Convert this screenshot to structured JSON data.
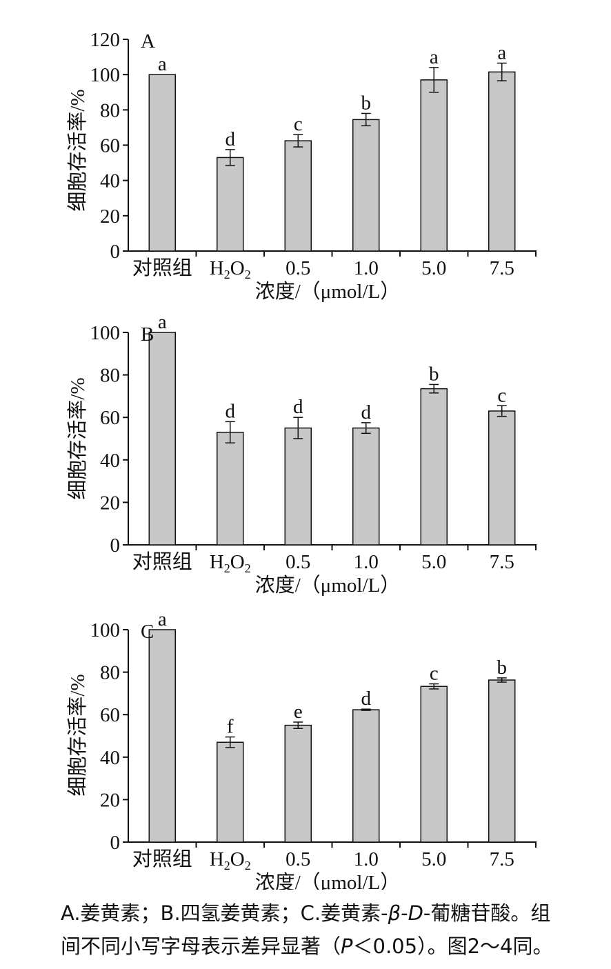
{
  "chart_data": [
    {
      "type": "bar",
      "panel_label": "A",
      "categories": [
        "对照组",
        "H2O2",
        "0.5",
        "1.0",
        "5.0",
        "7.5"
      ],
      "values": [
        100,
        53,
        62.5,
        74.5,
        97,
        101.5
      ],
      "errors": [
        0,
        4.5,
        3.5,
        3.5,
        7,
        5
      ],
      "significance": [
        "a",
        "d",
        "c",
        "b",
        "a",
        "a"
      ],
      "ylabel": "细胞存活率/%",
      "xlabel": "浓度/（μmol/L）",
      "ylim": [
        0,
        120
      ],
      "yticks": [
        0,
        20,
        40,
        60,
        80,
        100,
        120
      ],
      "grid": false,
      "bar_color": "#c8c8c8"
    },
    {
      "type": "bar",
      "panel_label": "B",
      "categories": [
        "对照组",
        "H2O2",
        "0.5",
        "1.0",
        "5.0",
        "7.5"
      ],
      "values": [
        100,
        53,
        55,
        55,
        73.5,
        63
      ],
      "errors": [
        0,
        5,
        5,
        2.5,
        2,
        2.5
      ],
      "significance": [
        "a",
        "d",
        "d",
        "d",
        "b",
        "c"
      ],
      "ylabel": "细胞存活率/%",
      "xlabel": "浓度/（μmol/L）",
      "ylim": [
        0,
        100
      ],
      "yticks": [
        0,
        20,
        40,
        60,
        80,
        100
      ],
      "grid": false,
      "bar_color": "#c8c8c8"
    },
    {
      "type": "bar",
      "panel_label": "C",
      "categories": [
        "对照组",
        "H2O2",
        "0.5",
        "1.0",
        "5.0",
        "7.5"
      ],
      "values": [
        100,
        47,
        55,
        62.3,
        73.3,
        76.3
      ],
      "errors": [
        0,
        2.5,
        1.5,
        0.3,
        1.2,
        1
      ],
      "significance": [
        "a",
        "f",
        "e",
        "d",
        "c",
        "b"
      ],
      "ylabel": "细胞存活率/%",
      "xlabel": "浓度/（μmol/L）",
      "ylim": [
        0,
        100
      ],
      "yticks": [
        0,
        20,
        40,
        60,
        80,
        100
      ],
      "grid": false,
      "bar_color": "#c8c8c8"
    }
  ],
  "caption": {
    "line1_before_beta": "A.姜黄素；B.四氢姜黄素；C.姜黄素-",
    "beta": "β",
    "dash1": "-",
    "d_letter": "D",
    "line1_after_d": "-葡糖苷酸。组",
    "line2_before_p": "间不同小写字母表示差异显著（",
    "p_letter": "P",
    "line2_after_p": "＜0.05）。图2～4同。"
  }
}
